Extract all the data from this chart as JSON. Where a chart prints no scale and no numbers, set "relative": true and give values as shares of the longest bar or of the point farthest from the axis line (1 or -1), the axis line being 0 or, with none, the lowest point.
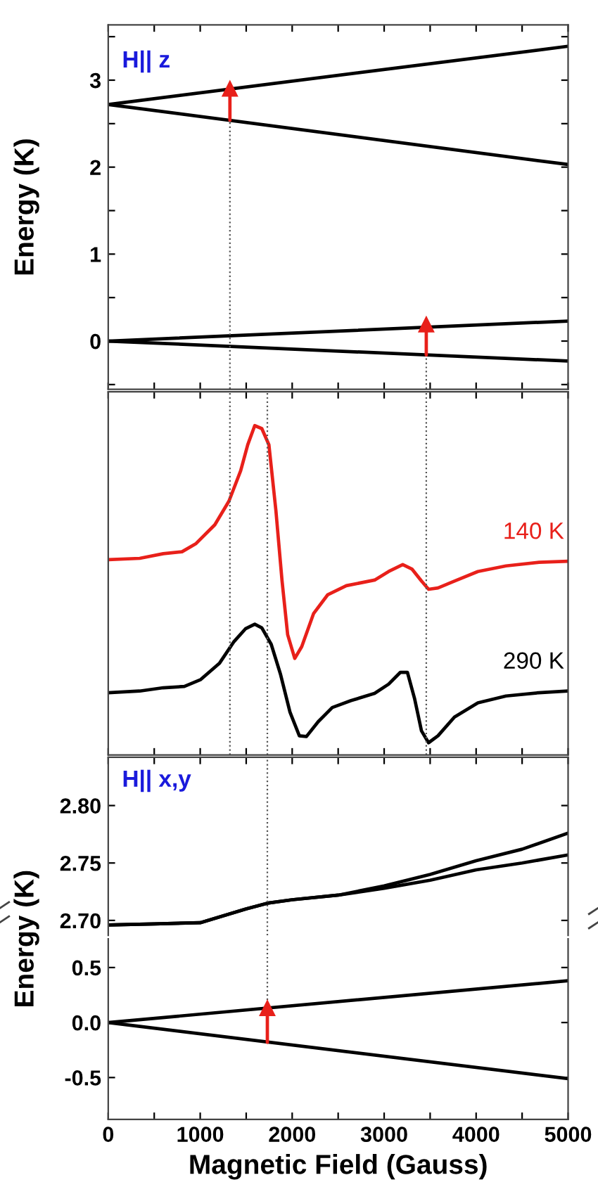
{
  "chart_data": [
    {
      "type": "line",
      "ylabel": "Energy (K)",
      "annotations": [
        "H|| z"
      ],
      "xlim": [
        0,
        5000
      ],
      "ylim": [
        -0.555,
        3.635
      ],
      "tick_labels": "y",
      "xticks": [
        0,
        {
          "value": 500,
          "label": null
        },
        1000,
        {
          "value": 1500,
          "label": null
        },
        2000,
        {
          "value": 2500,
          "label": null
        },
        3000,
        {
          "value": 3500,
          "label": null
        },
        4000,
        {
          "value": 4500,
          "label": null
        },
        5000
      ],
      "yticks": [
        {
          "value": -0.5,
          "label": null
        },
        0,
        {
          "value": 0.5,
          "label": null
        },
        1,
        {
          "value": 1.5,
          "label": null
        },
        2,
        {
          "value": 2.5,
          "label": null
        },
        3,
        {
          "value": 3.5,
          "label": null
        }
      ],
      "series": [
        {
          "color": "#000000",
          "x": [
            0,
            5000
          ],
          "values": [
            2.72,
            3.39
          ]
        },
        {
          "color": "#000000",
          "x": [
            0,
            5000
          ],
          "values": [
            2.72,
            2.03
          ]
        },
        {
          "color": "#000000",
          "x": [
            0,
            5000
          ],
          "values": [
            0,
            0.23
          ]
        },
        {
          "color": "#000000",
          "x": [
            0,
            5000
          ],
          "values": [
            0,
            -0.23
          ]
        },
        {
          "color": "#555555",
          "line_style": "dotted",
          "x": [
            1323,
            1323
          ],
          "values": [
            -0.55,
            2.54
          ]
        },
        {
          "color": "#555555",
          "line_style": "dotted",
          "x": [
            3458,
            3458
          ],
          "values": [
            -0.55,
            -0.16
          ]
        },
        {
          "color": "#e8201a",
          "marker": "triangle",
          "x": [
            1323,
            1323
          ],
          "values": [
            2.54,
            2.9
          ]
        },
        {
          "color": "#e8201a",
          "marker": "triangle",
          "x": [
            3458,
            3458
          ],
          "values": [
            -0.16,
            0.19
          ]
        }
      ]
    },
    {
      "type": "line",
      "relative": true,
      "xlim": [
        0,
        5000
      ],
      "tick_labels": false,
      "xticks": [
        0,
        {
          "value": 500,
          "label": null
        },
        1000,
        {
          "value": 1500,
          "label": null
        },
        2000,
        {
          "value": 2500,
          "label": null
        },
        3000,
        {
          "value": 3500,
          "label": null
        },
        4000,
        {
          "value": 4500,
          "label": null
        },
        5000
      ],
      "ref_lines": [
        {
          "axis": "x",
          "value": 1323,
          "color": "#555555",
          "line_style": "dotted"
        },
        {
          "axis": "x",
          "value": 3458,
          "color": "#555555",
          "line_style": "dotted"
        },
        {
          "axis": "x",
          "value": 1730,
          "color": "#555555",
          "line_style": "dotted"
        }
      ],
      "series": [
        {
          "name": "140 K",
          "color": "#e8201a",
          "x": [
            0,
            342,
            598,
            802,
            955,
            1159,
            1313,
            1440,
            1517,
            1593,
            1670,
            1747,
            1823,
            1890,
            1951,
            2028,
            2104,
            2232,
            2385,
            2589,
            2896,
            3049,
            3202,
            3304,
            3406,
            3483,
            3585,
            3764,
            4019,
            4325,
            4683,
            5000
          ],
          "values": [
            0.593,
            0.597,
            0.611,
            0.617,
            0.642,
            0.699,
            0.771,
            0.863,
            0.942,
            1,
            0.991,
            0.942,
            0.742,
            0.528,
            0.365,
            0.293,
            0.329,
            0.429,
            0.486,
            0.514,
            0.531,
            0.557,
            0.578,
            0.564,
            0.528,
            0.503,
            0.507,
            0.528,
            0.557,
            0.574,
            0.585,
            0.588
          ]
        },
        {
          "name": "290 K",
          "color": "#000000",
          "x": [
            0,
            342,
            598,
            828,
            1006,
            1211,
            1364,
            1492,
            1593,
            1670,
            1772,
            1874,
            1976,
            2078,
            2155,
            2283,
            2436,
            2640,
            2896,
            3049,
            3177,
            3253,
            3330,
            3406,
            3483,
            3585,
            3764,
            4019,
            4325,
            4683,
            5000
          ],
          "values": [
            0.189,
            0.194,
            0.204,
            0.208,
            0.229,
            0.279,
            0.343,
            0.383,
            0.397,
            0.386,
            0.336,
            0.244,
            0.13,
            0.058,
            0.056,
            0.101,
            0.144,
            0.165,
            0.187,
            0.215,
            0.251,
            0.251,
            0.172,
            0.073,
            0.037,
            0.058,
            0.115,
            0.158,
            0.179,
            0.189,
            0.194
          ]
        }
      ]
    },
    {
      "type": "line",
      "annotations": [
        "H|| x,y"
      ],
      "xlim": [
        0,
        5000
      ],
      "ylim": [
        2.687,
        2.842
      ],
      "tick_labels": "y",
      "xticks": [
        0,
        {
          "value": 500,
          "label": null
        },
        1000,
        {
          "value": 1500,
          "label": null
        },
        2000,
        {
          "value": 2500,
          "label": null
        },
        3000,
        {
          "value": 3500,
          "label": null
        },
        4000,
        {
          "value": 4500,
          "label": null
        },
        5000
      ],
      "yticks": [
        {
          "value": 2.7,
          "label": "2.70"
        },
        {
          "value": 2.75,
          "label": "2.75"
        },
        {
          "value": 2.8,
          "label": "2.80"
        }
      ],
      "series": [
        {
          "color": "#000000",
          "x": [
            0,
            500,
            1000,
            1500,
            1730,
            2000,
            2500,
            3000,
            3500,
            4000,
            4500,
            5000
          ],
          "values": [
            2.696,
            2.697,
            2.698,
            2.71,
            2.715,
            2.718,
            2.722,
            2.73,
            2.74,
            2.752,
            2.762,
            2.776
          ]
        },
        {
          "color": "#000000",
          "x": [
            0,
            500,
            1000,
            1500,
            1730,
            2000,
            2500,
            3000,
            3500,
            4000,
            4500,
            5000
          ],
          "values": [
            2.696,
            2.697,
            2.698,
            2.71,
            2.715,
            2.718,
            2.722,
            2.728,
            2.735,
            2.744,
            2.75,
            2.757
          ]
        },
        {
          "color": "#555555",
          "line_style": "dotted",
          "x": [
            1730,
            1730
          ],
          "values": [
            2.687,
            2.842
          ]
        }
      ]
    },
    {
      "type": "line",
      "xlabel": "Magnetic Field (Gauss)",
      "ylabel": "Energy (K)",
      "xlim": [
        0,
        5000
      ],
      "ylim": [
        -0.88,
        0.76
      ],
      "xticks": [
        0,
        {
          "value": 500,
          "label": null
        },
        1000,
        {
          "value": 1500,
          "label": null
        },
        2000,
        {
          "value": 2500,
          "label": null
        },
        3000,
        {
          "value": 3500,
          "label": null
        },
        4000,
        {
          "value": 4500,
          "label": null
        },
        5000
      ],
      "yticks": [
        {
          "value": -0.5,
          "label": "-0.5"
        },
        {
          "value": 0,
          "label": "0.0"
        },
        {
          "value": 0.5,
          "label": "0.5"
        }
      ],
      "series": [
        {
          "color": "#000000",
          "x": [
            0,
            5000
          ],
          "values": [
            0,
            0.38
          ]
        },
        {
          "color": "#000000",
          "x": [
            0,
            5000
          ],
          "values": [
            0,
            -0.51
          ]
        },
        {
          "color": "#555555",
          "line_style": "dotted",
          "x": [
            1730,
            1730
          ],
          "values": [
            0.13,
            0.76
          ]
        },
        {
          "color": "#e8201a",
          "marker": "triangle",
          "x": [
            1730,
            1730
          ],
          "values": [
            -0.18,
            0.13
          ]
        }
      ]
    }
  ]
}
